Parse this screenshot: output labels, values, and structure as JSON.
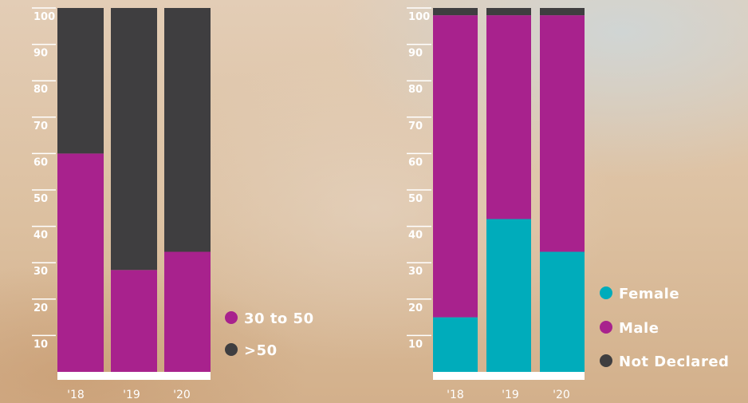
{
  "colors": {
    "magenta": "#a8228d",
    "dark": "#3f3e40",
    "teal": "#00acbb",
    "white": "#ffffff"
  },
  "chart_data": [
    {
      "type": "bar",
      "stacked": true,
      "categories": [
        "'18",
        "'19",
        "'20"
      ],
      "yticks": [
        10,
        20,
        30,
        40,
        50,
        60,
        70,
        80,
        90,
        100
      ],
      "ylim": [
        0,
        100
      ],
      "series": [
        {
          "name": "30 to 50",
          "color": "#a8228d",
          "values": [
            60,
            28,
            33
          ]
        },
        {
          "name": ">50",
          "color": "#3f3e40",
          "values": [
            40,
            72,
            67
          ]
        }
      ],
      "legend": "right"
    },
    {
      "type": "bar",
      "stacked": true,
      "categories": [
        "'18",
        "'19",
        "'20"
      ],
      "yticks": [
        10,
        20,
        30,
        40,
        50,
        60,
        70,
        80,
        90,
        100
      ],
      "ylim": [
        0,
        100
      ],
      "series": [
        {
          "name": "Female",
          "color": "#00acbb",
          "values": [
            15,
            42,
            33
          ]
        },
        {
          "name": "Male",
          "color": "#a8228d",
          "values": [
            83,
            56,
            65
          ]
        },
        {
          "name": "Not Declared",
          "color": "#3f3e40",
          "values": [
            2,
            2,
            2
          ]
        }
      ],
      "legend": "right"
    }
  ]
}
